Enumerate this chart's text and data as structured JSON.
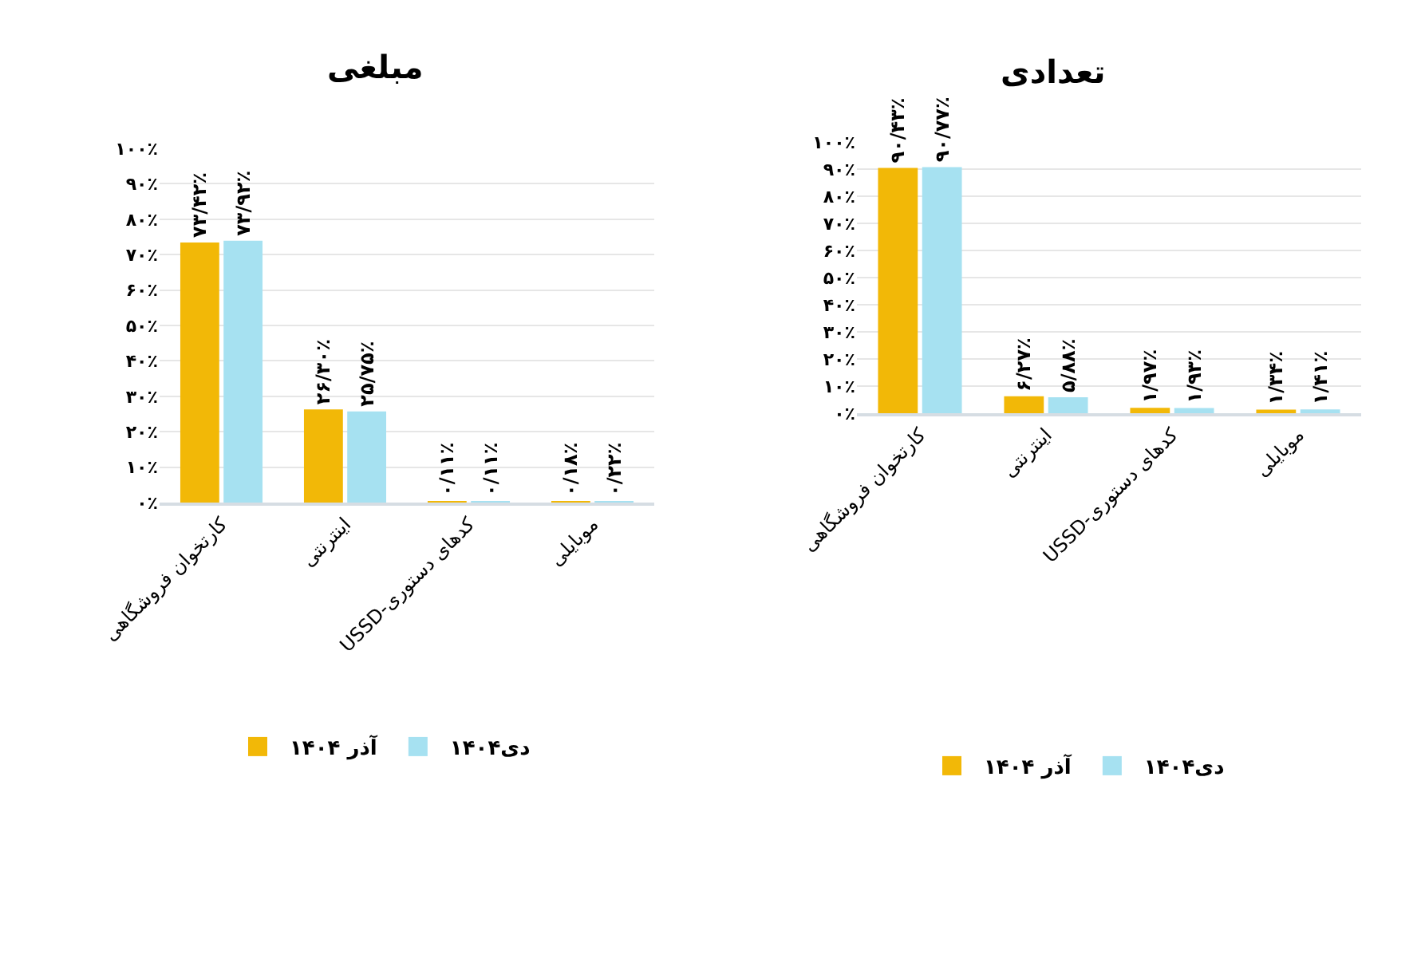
{
  "chart_data": [
    {
      "type": "bar",
      "title": "مبلغی",
      "categories": [
        "کارتخوان فروشگاهی",
        "اینترنتی",
        "USSD-کدهای دستوری",
        "موبایلی"
      ],
      "series": [
        {
          "name": "آذر ۱۴۰۴",
          "color": "#f2b807",
          "values": [
            73.42,
            26.3,
            0.11,
            0.18
          ],
          "value_labels": [
            "۷۳/۴۲٪",
            "۲۶/۳۰٪",
            "۰/۱۱٪",
            "۰/۱۸٪"
          ]
        },
        {
          "name": "دی۱۴۰۴",
          "color": "#a6e1f1",
          "values": [
            73.92,
            25.75,
            0.11,
            0.22
          ],
          "value_labels": [
            "۷۳/۹۲٪",
            "۲۵/۷۵٪",
            "۰/۱۱٪",
            "۰/۲۲٪"
          ]
        }
      ],
      "ylim": [
        0,
        100
      ],
      "yticks": [
        {
          "value": 0,
          "label": "۰٪"
        },
        {
          "value": 10,
          "label": "۱۰٪"
        },
        {
          "value": 20,
          "label": "۲۰٪"
        },
        {
          "value": 30,
          "label": "۳۰٪"
        },
        {
          "value": 40,
          "label": "۴۰٪"
        },
        {
          "value": 50,
          "label": "۵۰٪"
        },
        {
          "value": 60,
          "label": "۶۰٪"
        },
        {
          "value": 70,
          "label": "۷۰٪"
        },
        {
          "value": 80,
          "label": "۸۰٪"
        },
        {
          "value": 90,
          "label": "۹۰٪"
        },
        {
          "value": 100,
          "label": "۱۰۰٪"
        }
      ],
      "grid": "y",
      "legend": "bottom"
    },
    {
      "type": "bar",
      "title": "تعدادی",
      "categories": [
        "کارتخوان فروشگاهی",
        "اینترنتی",
        "USSD-کدهای دستوری",
        "موبایلی"
      ],
      "series": [
        {
          "name": "آذر ۱۴۰۴",
          "color": "#f2b807",
          "values": [
            90.43,
            6.27,
            1.97,
            1.34
          ],
          "value_labels": [
            "۹۰/۴۳٪",
            "۶/۲۷٪",
            "۱/۹۷٪",
            "۱/۳۴٪"
          ]
        },
        {
          "name": "دی۱۴۰۴",
          "color": "#a6e1f1",
          "values": [
            90.77,
            5.88,
            1.93,
            1.41
          ],
          "value_labels": [
            "۹۰/۷۷٪",
            "۵/۸۸٪",
            "۱/۹۳٪",
            "۱/۴۱٪"
          ]
        }
      ],
      "ylim": [
        0,
        100
      ],
      "yticks": [
        {
          "value": 0,
          "label": "۰٪"
        },
        {
          "value": 10,
          "label": "۱۰٪"
        },
        {
          "value": 20,
          "label": "۲۰٪"
        },
        {
          "value": 30,
          "label": "۳۰٪"
        },
        {
          "value": 40,
          "label": "۴۰٪"
        },
        {
          "value": 50,
          "label": "۵۰٪"
        },
        {
          "value": 60,
          "label": "۶۰٪"
        },
        {
          "value": 70,
          "label": "۷۰٪"
        },
        {
          "value": 80,
          "label": "۸۰٪"
        },
        {
          "value": 90,
          "label": "۹۰٪"
        },
        {
          "value": 100,
          "label": "۱۰۰٪"
        }
      ],
      "grid": "y",
      "legend": "bottom"
    }
  ]
}
